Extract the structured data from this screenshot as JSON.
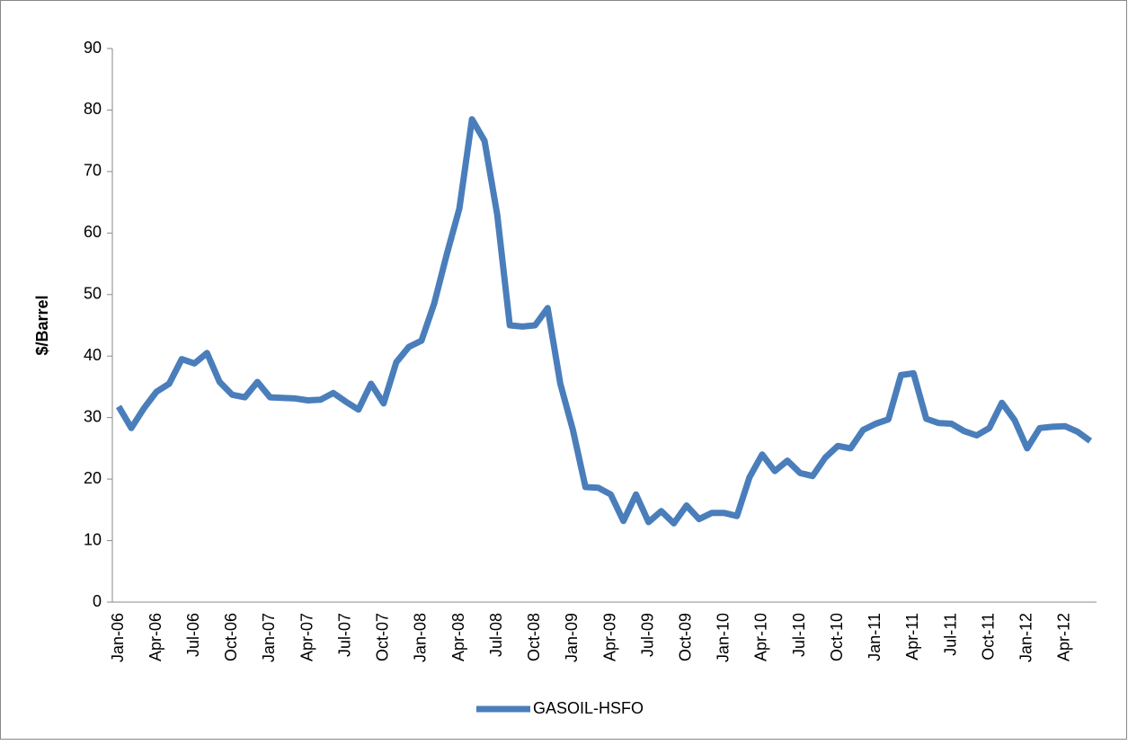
{
  "chart_data": {
    "type": "line",
    "y_label": "$/Barrel",
    "categories": [
      "Jan-06",
      null,
      null,
      "Apr-06",
      null,
      null,
      "Jul-06",
      null,
      null,
      "Oct-06",
      null,
      null,
      "Jan-07",
      null,
      null,
      "Apr-07",
      null,
      null,
      "Jul-07",
      null,
      null,
      "Oct-07",
      null,
      null,
      "Jan-08",
      null,
      null,
      "Apr-08",
      null,
      null,
      "Jul-08",
      null,
      null,
      "Oct-08",
      null,
      null,
      "Jan-09",
      null,
      null,
      "Apr-09",
      null,
      null,
      "Jul-09",
      null,
      null,
      "Oct-09",
      null,
      null,
      "Jan-10",
      null,
      null,
      "Apr-10",
      null,
      null,
      "Jul-10",
      null,
      null,
      "Oct-10",
      null,
      null,
      "Jan-11",
      null,
      null,
      "Apr-11",
      null,
      null,
      "Jul-11",
      null,
      null,
      "Oct-11",
      null,
      null,
      "Jan-12",
      null,
      null,
      "Apr-12",
      null,
      null
    ],
    "series": [
      {
        "name": "GASOIL-HSFO",
        "color": "#4a7ebb",
        "values": [
          31.8,
          28.3,
          31.5,
          34.2,
          35.5,
          39.5,
          38.8,
          40.5,
          35.8,
          33.7,
          33.3,
          35.8,
          33.3,
          33.2,
          33.1,
          32.8,
          32.9,
          34.0,
          32.6,
          31.3,
          35.5,
          32.3,
          39.0,
          41.5,
          42.5,
          48.5,
          56.5,
          64.0,
          78.5,
          75.0,
          63.0,
          45.0,
          44.8,
          45.0,
          47.8,
          35.5,
          28.0,
          18.7,
          18.6,
          17.5,
          13.2,
          17.5,
          13.0,
          14.8,
          12.8,
          15.7,
          13.5,
          14.5,
          14.5,
          14.0,
          20.3,
          24.0,
          21.3,
          23.0,
          21.0,
          20.5,
          23.5,
          25.4,
          25.0,
          28.0,
          29.0,
          29.7,
          36.9,
          37.2,
          29.8,
          29.1,
          29.0,
          27.8,
          27.1,
          28.3,
          32.4,
          29.6,
          25.0,
          28.3,
          28.5,
          28.6,
          27.7,
          26.2
        ]
      }
    ],
    "ylim": [
      0,
      90
    ],
    "yticks": [
      0,
      10,
      20,
      30,
      40,
      50,
      60,
      70,
      80,
      90
    ],
    "grid": false,
    "legend": "bottom"
  }
}
